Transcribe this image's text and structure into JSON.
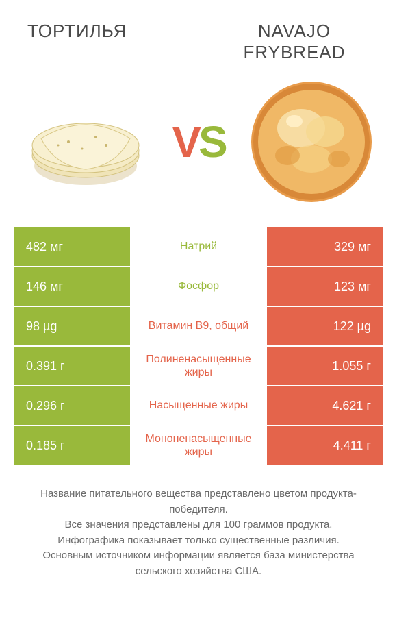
{
  "titles": {
    "left": "ТОРТИЛЬЯ",
    "right": "NAVAJO FRYBREAD"
  },
  "vs": {
    "v": "V",
    "s": "S"
  },
  "colors": {
    "green": "#99b93b",
    "orange": "#e4644b",
    "text_gray": "#4a4a4a",
    "footer_gray": "#6a6a6a",
    "bg": "#ffffff"
  },
  "rows": [
    {
      "left": "482 мг",
      "label": "Натрий",
      "right": "329 мг",
      "winner": "left"
    },
    {
      "left": "146 мг",
      "label": "Фосфор",
      "right": "123 мг",
      "winner": "left"
    },
    {
      "left": "98 µg",
      "label": "Витамин B9, общий",
      "right": "122 µg",
      "winner": "right"
    },
    {
      "left": "0.391 г",
      "label": "Полиненасыщенные жиры",
      "right": "1.055 г",
      "winner": "right"
    },
    {
      "left": "0.296 г",
      "label": "Насыщенные жиры",
      "right": "4.621 г",
      "winner": "right"
    },
    {
      "left": "0.185 г",
      "label": "Мононенасыщенные жиры",
      "right": "4.411 г",
      "winner": "right"
    }
  ],
  "footer": {
    "l1": "Название питательного вещества представлено цветом продукта-победителя.",
    "l2": "Все значения представлены для 100 граммов продукта.",
    "l3": "Инфографика показывает только существенные различия.",
    "l4": "Основным источником информации является база министерства сельского хозяйства США."
  }
}
